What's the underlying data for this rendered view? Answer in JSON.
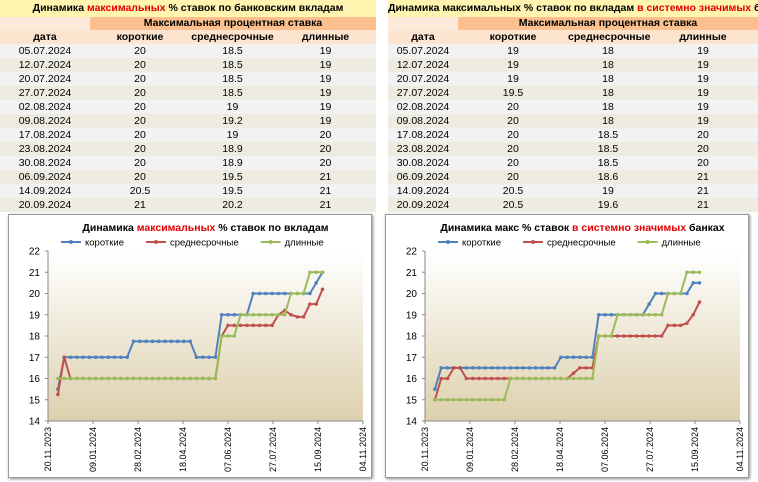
{
  "tables": [
    {
      "title_parts": [
        "Динамика ",
        "максимальных",
        " % ставок по банковским вкладам"
      ],
      "group_header": "Максимальная процентная ставка",
      "columns": [
        "дата",
        "короткие",
        "среднесрочные",
        "длинные"
      ],
      "rows": [
        [
          "05.07.2024",
          20,
          18.5,
          19
        ],
        [
          "12.07.2024",
          20,
          18.5,
          19
        ],
        [
          "20.07.2024",
          20,
          18.5,
          19
        ],
        [
          "27.07.2024",
          20,
          18.5,
          19
        ],
        [
          "02.08.2024",
          20,
          19,
          19
        ],
        [
          "09.08.2024",
          20,
          19.2,
          19
        ],
        [
          "17.08.2024",
          20,
          19,
          20
        ],
        [
          "23.08.2024",
          20,
          18.9,
          20
        ],
        [
          "30.08.2024",
          20,
          18.9,
          20
        ],
        [
          "06.09.2024",
          20,
          19.5,
          21
        ],
        [
          "14.09.2024",
          20.5,
          19.5,
          21
        ],
        [
          "20.09.2024",
          21,
          20.2,
          21
        ]
      ]
    },
    {
      "title_parts": [
        "Динамика максимальных % ставок по вкладам ",
        "в системно значимых",
        " банках"
      ],
      "group_header": "Максимальная процентная ставка",
      "columns": [
        "дата",
        "короткие",
        "среднесрочные",
        "длинные"
      ],
      "rows": [
        [
          "05.07.2024",
          19,
          18,
          19
        ],
        [
          "12.07.2024",
          19,
          18,
          19
        ],
        [
          "20.07.2024",
          19,
          18,
          19
        ],
        [
          "27.07.2024",
          19.5,
          18,
          19
        ],
        [
          "02.08.2024",
          20,
          18,
          19
        ],
        [
          "09.08.2024",
          20,
          18,
          19
        ],
        [
          "17.08.2024",
          20,
          18.5,
          20
        ],
        [
          "23.08.2024",
          20,
          18.5,
          20
        ],
        [
          "30.08.2024",
          20,
          18.5,
          20
        ],
        [
          "06.09.2024",
          20,
          18.6,
          21
        ],
        [
          "14.09.2024",
          20.5,
          19,
          21
        ],
        [
          "20.09.2024",
          20.5,
          19.6,
          21
        ]
      ]
    }
  ],
  "chart_data": [
    {
      "type": "line",
      "title_parts": [
        "Динамика ",
        "максимальных",
        " % ставок по вкладам"
      ],
      "legend": "top",
      "x": [
        "01.12.2023",
        "08.12.2023",
        "15.12.2023",
        "22.12.2023",
        "29.12.2023",
        "05.01.2024",
        "12.01.2024",
        "19.01.2024",
        "26.01.2024",
        "02.02.2024",
        "09.02.2024",
        "16.02.2024",
        "23.02.2024",
        "01.03.2024",
        "08.03.2024",
        "15.03.2024",
        "22.03.2024",
        "29.03.2024",
        "05.04.2024",
        "12.04.2024",
        "19.04.2024",
        "26.04.2024",
        "03.05.2024",
        "10.05.2024",
        "17.05.2024",
        "24.05.2024",
        "31.05.2024",
        "07.06.2024",
        "14.06.2024",
        "21.06.2024",
        "28.06.2024",
        "05.07.2024",
        "12.07.2024",
        "19.07.2024",
        "26.07.2024",
        "02.08.2024",
        "09.08.2024",
        "16.08.2024",
        "23.08.2024",
        "30.08.2024",
        "06.09.2024",
        "13.09.2024",
        "20.09.2024"
      ],
      "series": [
        {
          "name": "короткие",
          "color": "#4f81bd",
          "values": [
            15.5,
            17,
            17,
            17,
            17,
            17,
            17,
            17,
            17,
            17,
            17,
            17,
            17.75,
            17.75,
            17.75,
            17.75,
            17.75,
            17.75,
            17.75,
            17.75,
            17.75,
            17.75,
            17,
            17,
            17,
            17,
            19,
            19,
            19,
            19,
            19,
            20,
            20,
            20,
            20,
            20,
            20,
            20,
            20,
            20,
            20,
            20.5,
            21
          ]
        },
        {
          "name": "среднесрочные",
          "color": "#c0504d",
          "values": [
            15.25,
            17,
            16,
            16,
            16,
            16,
            16,
            16,
            16,
            16,
            16,
            16,
            16,
            16,
            16,
            16,
            16,
            16,
            16,
            16,
            16,
            16,
            16,
            16,
            16,
            16,
            18,
            18.5,
            18.5,
            18.5,
            18.5,
            18.5,
            18.5,
            18.5,
            18.5,
            19,
            19.2,
            19,
            18.9,
            18.9,
            19.5,
            19.5,
            20.2
          ]
        },
        {
          "name": "длинные",
          "color": "#9bbb59",
          "values": [
            16,
            16,
            16,
            16,
            16,
            16,
            16,
            16,
            16,
            16,
            16,
            16,
            16,
            16,
            16,
            16,
            16,
            16,
            16,
            16,
            16,
            16,
            16,
            16,
            16,
            16,
            18,
            18,
            18,
            19,
            19,
            19,
            19,
            19,
            19,
            19,
            19,
            20,
            20,
            20,
            21,
            21,
            21
          ]
        }
      ],
      "xlim": [
        "20.11.2023",
        "04.11.2024"
      ],
      "xticks": [
        "20.11.2023",
        "09.01.2024",
        "28.02.2024",
        "18.04.2024",
        "07.06.2024",
        "27.07.2024",
        "15.09.2024",
        "04.11.2024"
      ],
      "ylim": [
        14,
        22
      ],
      "yticks": [
        14,
        15,
        16,
        17,
        18,
        19,
        20,
        21,
        22
      ]
    },
    {
      "type": "line",
      "title_parts": [
        "Динамика макс % ставок ",
        "в системно значимых",
        " банках"
      ],
      "legend": "top",
      "x": [
        "01.12.2023",
        "08.12.2023",
        "15.12.2023",
        "22.12.2023",
        "29.12.2023",
        "05.01.2024",
        "12.01.2024",
        "19.01.2024",
        "26.01.2024",
        "02.02.2024",
        "09.02.2024",
        "16.02.2024",
        "23.02.2024",
        "01.03.2024",
        "08.03.2024",
        "15.03.2024",
        "22.03.2024",
        "29.03.2024",
        "05.04.2024",
        "12.04.2024",
        "19.04.2024",
        "26.04.2024",
        "03.05.2024",
        "10.05.2024",
        "17.05.2024",
        "24.05.2024",
        "31.05.2024",
        "07.06.2024",
        "14.06.2024",
        "21.06.2024",
        "28.06.2024",
        "05.07.2024",
        "12.07.2024",
        "19.07.2024",
        "26.07.2024",
        "02.08.2024",
        "09.08.2024",
        "16.08.2024",
        "23.08.2024",
        "30.08.2024",
        "06.09.2024",
        "13.09.2024",
        "20.09.2024"
      ],
      "series": [
        {
          "name": "короткие",
          "color": "#4f81bd",
          "values": [
            15.5,
            16.5,
            16.5,
            16.5,
            16.5,
            16.5,
            16.5,
            16.5,
            16.5,
            16.5,
            16.5,
            16.5,
            16.5,
            16.5,
            16.5,
            16.5,
            16.5,
            16.5,
            16.5,
            16.5,
            17,
            17,
            17,
            17,
            17,
            17,
            19,
            19,
            19,
            19,
            19,
            19,
            19,
            19,
            19.5,
            20,
            20,
            20,
            20,
            20,
            20,
            20.5,
            20.5
          ]
        },
        {
          "name": "среднесрочные",
          "color": "#c0504d",
          "values": [
            15,
            16,
            16,
            16.5,
            16.5,
            16,
            16,
            16,
            16,
            16,
            16,
            16,
            16,
            16,
            16,
            16,
            16,
            16,
            16,
            16,
            16,
            16,
            16.25,
            16.5,
            16.5,
            16.5,
            18,
            18,
            18,
            18,
            18,
            18,
            18,
            18,
            18,
            18,
            18,
            18.5,
            18.5,
            18.5,
            18.6,
            19,
            19.6
          ]
        },
        {
          "name": "длинные",
          "color": "#9bbb59",
          "values": [
            15,
            15,
            15,
            15,
            15,
            15,
            15,
            15,
            15,
            15,
            15,
            15,
            16,
            16,
            16,
            16,
            16,
            16,
            16,
            16,
            16,
            16,
            16,
            16,
            16,
            16,
            18,
            18,
            18,
            19,
            19,
            19,
            19,
            19,
            19,
            19,
            19,
            20,
            20,
            20,
            21,
            21,
            21
          ]
        }
      ],
      "xlim": [
        "20.11.2023",
        "04.11.2024"
      ],
      "xticks": [
        "20.11.2023",
        "09.01.2024",
        "28.02.2024",
        "18.04.2024",
        "07.06.2024",
        "27.07.2024",
        "15.09.2024",
        "04.11.2024"
      ],
      "ylim": [
        14,
        22
      ],
      "yticks": [
        14,
        15,
        16,
        17,
        18,
        19,
        20,
        21,
        22
      ]
    }
  ]
}
